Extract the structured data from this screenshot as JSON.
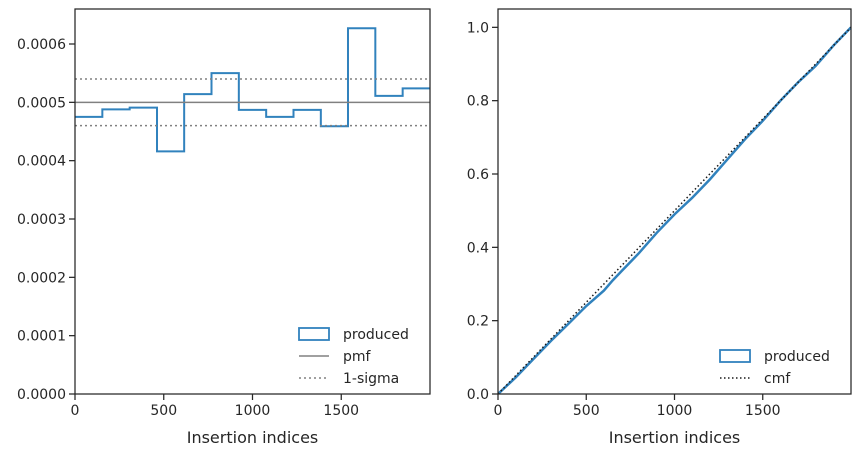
{
  "chart_data": [
    {
      "type": "histogram",
      "xlabel": "Insertion indices",
      "ylabel": "",
      "xlim": [
        0,
        2000
      ],
      "ylim": [
        0,
        0.00066
      ],
      "xticks": [
        0,
        500,
        1000,
        1500
      ],
      "xtick_labels": [
        "0",
        "500",
        "1000",
        "1500"
      ],
      "yticks": [
        0,
        0.0001,
        0.0002,
        0.0003,
        0.0004,
        0.0005,
        0.0006
      ],
      "ytick_labels": [
        "0.0000",
        "0.0001",
        "0.0002",
        "0.0003",
        "0.0004",
        "0.0005",
        "0.0006"
      ],
      "bin_edges": [
        0,
        154,
        308,
        462,
        615,
        769,
        923,
        1077,
        1231,
        1385,
        1538,
        1692,
        1846,
        2000
      ],
      "series": [
        {
          "name": "produced",
          "style": "step",
          "color": "#3182bd",
          "values": [
            0.000475,
            0.000488,
            0.000491,
            0.000416,
            0.000514,
            0.00055,
            0.000487,
            0.000475,
            0.000487,
            0.000459,
            0.000627,
            0.000511,
            0.000524
          ]
        },
        {
          "name": "pmf",
          "style": "hline-solid",
          "color": "#808080",
          "y": 0.0005
        },
        {
          "name": "1-sigma",
          "style": "hline-dotted",
          "color": "#808080",
          "y": [
            0.00046,
            0.00054
          ]
        }
      ],
      "legend": {
        "position": "lower-right",
        "entries": [
          "produced",
          "pmf",
          "1-sigma"
        ]
      }
    },
    {
      "type": "line",
      "xlabel": "Insertion indices",
      "ylabel": "",
      "xlim": [
        0,
        2000
      ],
      "ylim": [
        0,
        1.05
      ],
      "xticks": [
        0,
        500,
        1000,
        1500
      ],
      "xtick_labels": [
        "0",
        "500",
        "1000",
        "1500"
      ],
      "yticks": [
        0,
        0.2,
        0.4,
        0.6,
        0.8,
        1.0
      ],
      "ytick_labels": [
        "0.0",
        "0.2",
        "0.4",
        "0.6",
        "0.8",
        "1.0"
      ],
      "series": [
        {
          "name": "produced",
          "style": "step",
          "color": "#3182bd",
          "x": [
            0,
            100,
            200,
            300,
            400,
            500,
            600,
            650,
            700,
            800,
            900,
            1000,
            1100,
            1200,
            1300,
            1400,
            1500,
            1600,
            1700,
            1800,
            1900,
            2000
          ],
          "y": [
            0,
            0.045,
            0.095,
            0.145,
            0.192,
            0.24,
            0.282,
            0.31,
            0.335,
            0.385,
            0.44,
            0.49,
            0.535,
            0.585,
            0.64,
            0.695,
            0.745,
            0.8,
            0.85,
            0.895,
            0.95,
            1.0
          ]
        },
        {
          "name": "cmf",
          "style": "dotted",
          "color": "#1a1a1a",
          "x": [
            0,
            2000
          ],
          "y": [
            0,
            1.0
          ]
        }
      ],
      "legend": {
        "position": "lower-right",
        "entries": [
          "produced",
          "cmf"
        ]
      }
    }
  ]
}
